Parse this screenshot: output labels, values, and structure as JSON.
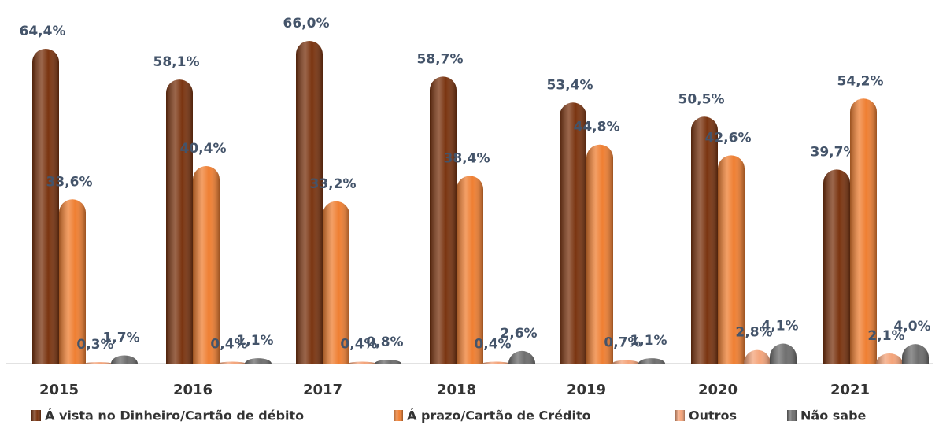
{
  "chart_data": {
    "type": "bar",
    "categories": [
      "2015",
      "2016",
      "2017",
      "2018",
      "2019",
      "2020",
      "2021"
    ],
    "series": [
      {
        "name": "Á vista no Dinheiro/Cartão de débito",
        "color": "#7a3410",
        "values": [
          64.4,
          58.1,
          66.0,
          58.7,
          53.4,
          50.5,
          39.7
        ],
        "value_labels": [
          "64,4%",
          "58,1%",
          "66,0%",
          "58,7%",
          "53,4%",
          "50,5%",
          "39,7%"
        ]
      },
      {
        "name": "Á prazo/Cartão de Crédito",
        "color": "#ef7f32",
        "values": [
          33.6,
          40.4,
          33.2,
          38.4,
          44.8,
          42.6,
          54.2
        ],
        "value_labels": [
          "33,6%",
          "40,4%",
          "33,2%",
          "38,4%",
          "44,8%",
          "42,6%",
          "54,2%"
        ]
      },
      {
        "name": "Outros",
        "color": "#f4a47a",
        "values": [
          0.3,
          0.4,
          0.4,
          0.4,
          0.7,
          2.8,
          2.1
        ],
        "value_labels": [
          "0,3%",
          "0,4%",
          "0,4%",
          "0,4%",
          "0,7%",
          "2,8%",
          "2,1%"
        ]
      },
      {
        "name": "Não sabe",
        "color": "#6e6e6e",
        "values": [
          1.7,
          1.1,
          0.8,
          2.6,
          1.1,
          4.1,
          4.0
        ],
        "value_labels": [
          "1,7%",
          "1,1%",
          "0,8%",
          "2,6%",
          "1,1%",
          "4,1%",
          "4,0%"
        ]
      }
    ]
  }
}
